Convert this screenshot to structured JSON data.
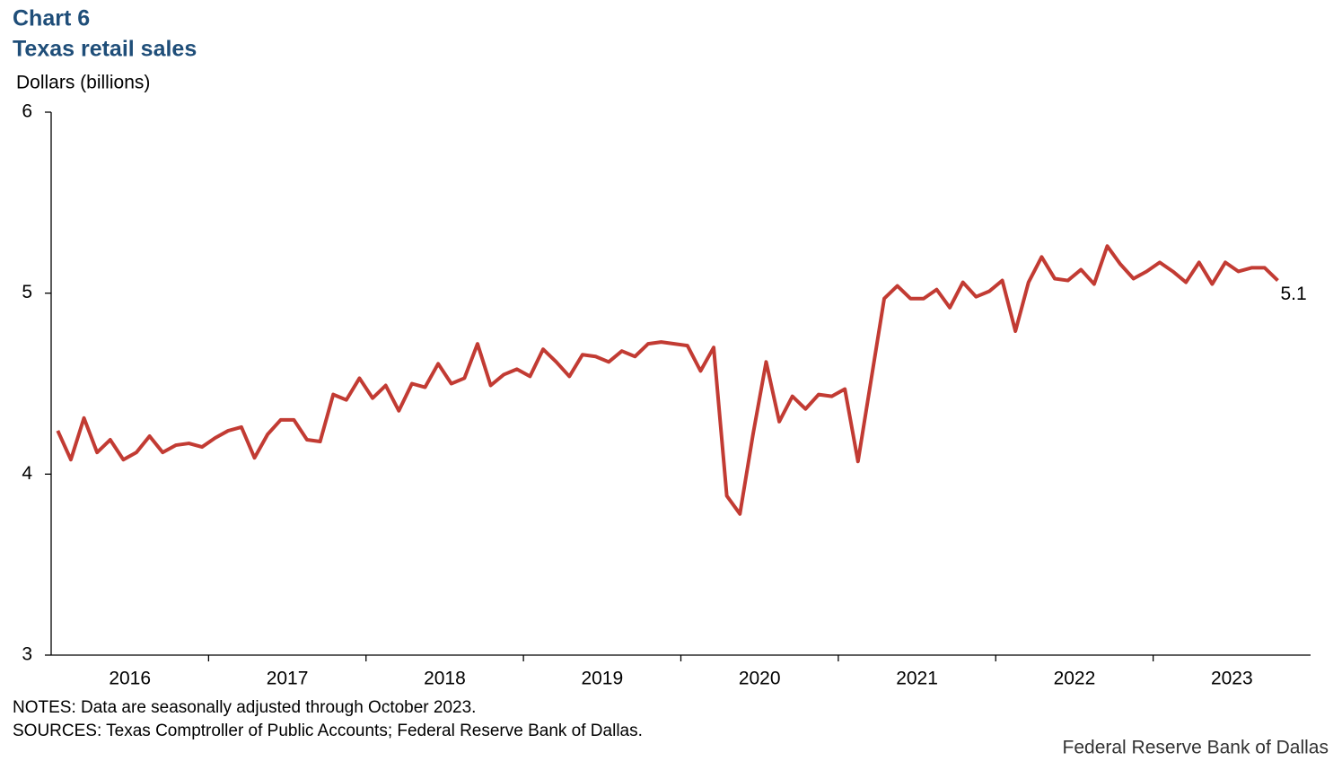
{
  "chart_data": {
    "type": "line",
    "title": "Chart 6",
    "subtitle": "Texas retail sales",
    "y_label": "Dollars (billions)",
    "notes": "NOTES: Data are seasonally adjusted through October 2023.",
    "sources": "SOURCES: Texas Comptroller of Public Accounts; Federal Reserve Bank of Dallas.",
    "credit": "Federal Reserve Bank of Dallas",
    "categories": [
      "2016",
      null,
      null,
      null,
      null,
      null,
      null,
      null,
      null,
      null,
      null,
      null,
      "2017",
      null,
      null,
      null,
      null,
      null,
      null,
      null,
      null,
      null,
      null,
      null,
      "2018",
      null,
      null,
      null,
      null,
      null,
      null,
      null,
      null,
      null,
      null,
      null,
      "2019",
      null,
      null,
      null,
      null,
      null,
      null,
      null,
      null,
      null,
      null,
      null,
      "2020",
      null,
      null,
      null,
      null,
      null,
      null,
      null,
      null,
      null,
      null,
      null,
      "2021",
      null,
      null,
      null,
      null,
      null,
      null,
      null,
      null,
      null,
      null,
      null,
      "2022",
      null,
      null,
      null,
      null,
      null,
      null,
      null,
      null,
      null,
      null,
      null,
      "2023",
      null,
      null,
      null,
      null,
      null,
      null,
      null,
      null,
      null
    ],
    "series": [
      {
        "name": "Texas retail sales",
        "color": "#c23b33",
        "values": [
          4.24,
          4.08,
          4.31,
          4.12,
          4.19,
          4.08,
          4.12,
          4.21,
          4.12,
          4.16,
          4.17,
          4.15,
          4.2,
          4.24,
          4.26,
          4.09,
          4.22,
          4.3,
          4.3,
          4.19,
          4.18,
          4.44,
          4.41,
          4.53,
          4.42,
          4.49,
          4.35,
          4.5,
          4.48,
          4.61,
          4.5,
          4.53,
          4.72,
          4.49,
          4.55,
          4.58,
          4.54,
          4.69,
          4.62,
          4.54,
          4.66,
          4.65,
          4.62,
          4.68,
          4.65,
          4.72,
          4.73,
          4.72,
          4.71,
          4.57,
          4.7,
          3.88,
          3.78,
          4.22,
          4.62,
          4.29,
          4.43,
          4.36,
          4.44,
          4.43,
          4.47,
          4.07,
          4.52,
          4.97,
          5.04,
          4.97,
          4.97,
          5.02,
          4.92,
          5.06,
          4.98,
          5.01,
          5.07,
          4.79,
          5.06,
          5.2,
          5.08,
          5.07,
          5.13,
          5.05,
          5.26,
          5.16,
          5.08,
          5.12,
          5.17,
          5.12,
          5.06,
          5.17,
          5.05,
          5.17,
          5.12,
          5.14,
          5.14,
          5.07
        ],
        "value_labels": [
          null,
          null,
          null,
          null,
          null,
          null,
          null,
          null,
          null,
          null,
          null,
          null,
          null,
          null,
          null,
          null,
          null,
          null,
          null,
          null,
          null,
          null,
          null,
          null,
          null,
          null,
          null,
          null,
          null,
          null,
          null,
          null,
          null,
          null,
          null,
          null,
          null,
          null,
          null,
          null,
          null,
          null,
          null,
          null,
          null,
          null,
          null,
          null,
          null,
          null,
          null,
          null,
          null,
          null,
          null,
          null,
          null,
          null,
          null,
          null,
          null,
          null,
          null,
          null,
          null,
          null,
          null,
          null,
          null,
          null,
          null,
          null,
          null,
          null,
          null,
          null,
          null,
          null,
          null,
          null,
          null,
          null,
          null,
          null,
          null,
          null,
          null,
          null,
          null,
          null,
          null,
          null,
          null,
          "5.1"
        ]
      }
    ],
    "ylim": [
      3,
      6
    ],
    "yticks": [
      3,
      4,
      5,
      6
    ],
    "grid": false
  }
}
